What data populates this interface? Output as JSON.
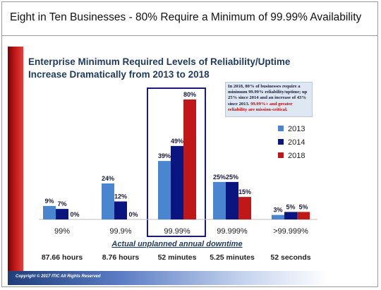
{
  "page": {
    "title": "Eight in Ten Businesses - 80% Require a Minimum of 99.99% Availability",
    "copyright": "Copyright © 2017 ITIC All Rights Reserved"
  },
  "callout": {
    "text_main": "In 2018, 80% of businesses require a minimum 99.99% reliability/uptime; up 25% since 2014 and an increase of 43% since 2013.",
    "text_red": "99.99%+ and greater reliability are mission-critical."
  },
  "colors": {
    "s2013": "#4a86d0",
    "s2014": "#0a1580",
    "s2018": "#c01818",
    "title": "#1f3a5f",
    "highlight_box": "#1a1a7a"
  },
  "chart_data": {
    "type": "bar",
    "title": "Enterprise Minimum Required Levels of Reliability/Uptime Increase Dramatically from 2013 to 2018",
    "title_line1": "Enterprise Minimum Required Levels of Reliability/Uptime",
    "title_line2": "Increase Dramatically from 2013 to 2018",
    "categories": [
      "99%",
      "99.9%",
      "99.99%",
      "99.999%",
      ">99.999%"
    ],
    "downtime_label": "Actual unplanned annual downtime",
    "downtime": [
      "87.66 hours",
      "8.76 hours",
      "52 minutes",
      "5.25 minutes",
      "52 seconds"
    ],
    "series": [
      {
        "name": "2013",
        "values": [
          9,
          24,
          39,
          25,
          3
        ],
        "labels": [
          "9%",
          "24%",
          "39%",
          "25%",
          "3%"
        ]
      },
      {
        "name": "2014",
        "values": [
          7,
          12,
          49,
          25,
          5
        ],
        "labels": [
          "7%",
          "12%",
          "49%",
          "25%",
          "5%"
        ]
      },
      {
        "name": "2018",
        "values": [
          0,
          0,
          80,
          15,
          5
        ],
        "labels": [
          "0%",
          "0%",
          "80%",
          "15%",
          "5%"
        ]
      }
    ],
    "ylim": [
      0,
      80
    ],
    "highlighted_category": "99.99%",
    "legend": "right",
    "grid": false
  }
}
